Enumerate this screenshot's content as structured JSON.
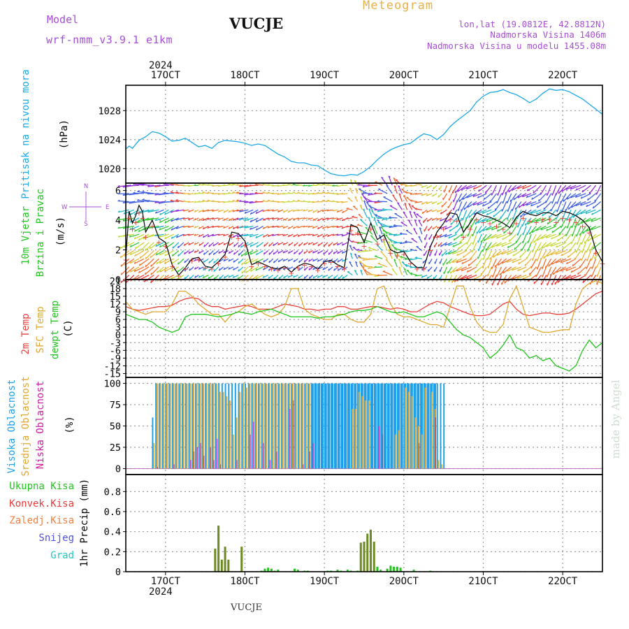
{
  "header": {
    "model_label": "Model",
    "model_name": "wrf-nmm_v3.9.1 e1km",
    "station": "VUCJE",
    "title": "Meteogram",
    "lonlat": "lon,lat (19.0812E, 42.8812N)",
    "elevation": "Nadmorska Visina 1406m",
    "model_elevation": "Nadmorska Visina u modelu 1455.08m",
    "year_top": "2024",
    "year_bottom": "2024",
    "footer_station": "VUCJE",
    "watermark": "made by Angel"
  },
  "colors": {
    "purple": "#a64dd8",
    "gold": "#e8b04a",
    "pressure": "#1fa8e8",
    "t2m": "#e8403a",
    "tsfc": "#e0a830",
    "dewpt": "#22c41e",
    "cloud_high": "#1fa0e8",
    "cloud_mid": "#e0a830",
    "cloud_low": "#d21ea0",
    "precip_total": "#22c41e",
    "precip_conv": "#e83a3a",
    "precip_freeze": "#f08040",
    "precip_snow": "#5050e0",
    "precip_hail": "#20c8c8",
    "precip_bar": "#6e8a22"
  },
  "x_axis": {
    "start": "2024-10-16T12",
    "end": "2024-10-22T12",
    "day_labels": [
      "17OCT",
      "18OCT",
      "19OCT",
      "20OCT",
      "21OCT",
      "22OCT"
    ],
    "day_hours": [
      12,
      36,
      60,
      84,
      108,
      132
    ]
  },
  "chart_data": [
    {
      "type": "line",
      "panel": "pressure",
      "ylabel_a": "Pritisak na nivou mora",
      "ylabel_b": "(hPa)",
      "ylim": [
        1018,
        1031.5
      ],
      "yticks": [
        1020,
        1024,
        1028
      ],
      "series": [
        {
          "name": "Pritisak na nivou mora",
          "x": [
            0,
            1,
            2,
            4,
            6,
            8,
            10,
            12,
            14,
            16,
            18,
            20,
            22,
            24,
            26,
            28,
            30,
            32,
            34,
            36,
            38,
            40,
            42,
            44,
            46,
            48,
            50,
            52,
            54,
            56,
            58,
            60,
            62,
            64,
            66,
            68,
            70,
            72,
            74,
            76,
            78,
            80,
            82,
            84,
            86,
            88,
            90,
            92,
            94,
            96,
            98,
            100,
            102,
            104,
            106,
            108,
            110,
            112,
            114,
            116,
            118,
            120,
            122,
            124,
            126,
            128,
            130,
            132,
            134,
            136,
            138,
            140,
            142,
            144
          ],
          "values": [
            1022.7,
            1023.1,
            1022.8,
            1023.9,
            1024.4,
            1025.1,
            1024.9,
            1024.4,
            1023.8,
            1023.9,
            1024.2,
            1023.6,
            1023.0,
            1023.2,
            1022.8,
            1023.6,
            1023.9,
            1023.8,
            1023.7,
            1023.5,
            1023.2,
            1023.4,
            1023.2,
            1022.6,
            1022.0,
            1021.6,
            1021.0,
            1020.8,
            1020.8,
            1020.5,
            1020.4,
            1019.8,
            1019.3,
            1019.1,
            1019.0,
            1019.2,
            1019.1,
            1019.6,
            1020.3,
            1021.2,
            1022.0,
            1022.6,
            1023.0,
            1023.3,
            1023.5,
            1024.2,
            1024.8,
            1024.6,
            1024.0,
            1024.7,
            1025.8,
            1026.6,
            1027.3,
            1028.0,
            1029.2,
            1030.0,
            1030.5,
            1030.6,
            1030.9,
            1030.5,
            1030.2,
            1029.7,
            1029.1,
            1029.6,
            1030.4,
            1031.0,
            1030.8,
            1030.9,
            1030.6,
            1030.1,
            1029.6,
            1028.9,
            1028.2,
            1027.5
          ]
        }
      ]
    },
    {
      "type": "line",
      "panel": "wind",
      "ylabel_a": "10m Vjetar",
      "ylabel_b": "Brzina i Pravac",
      "ylabel_unit": "(m/s)",
      "compass": {
        "w": "W",
        "e": "E",
        "n": "N",
        "s": "S"
      },
      "ylim": [
        0,
        6.5
      ],
      "yticks": [
        0,
        2,
        4,
        6
      ],
      "series": [
        {
          "name": "10m Vjetar",
          "x": [
            0,
            1,
            2,
            3,
            4,
            5,
            6,
            8,
            10,
            12,
            14,
            16,
            18,
            20,
            22,
            24,
            26,
            28,
            30,
            32,
            34,
            36,
            38,
            40,
            42,
            44,
            46,
            48,
            50,
            52,
            54,
            56,
            58,
            60,
            62,
            64,
            66,
            68,
            70,
            72,
            74,
            76,
            78,
            80,
            82,
            84,
            86,
            88,
            90,
            92,
            94,
            96,
            98,
            100,
            102,
            104,
            106,
            108,
            110,
            112,
            114,
            116,
            118,
            120,
            122,
            124,
            126,
            128,
            130,
            132,
            134,
            136,
            138,
            140,
            142,
            144
          ],
          "values": [
            1.5,
            4.6,
            3.8,
            4.3,
            5.0,
            4.6,
            3.2,
            4.0,
            2.8,
            2.5,
            1.0,
            0.3,
            0.8,
            1.4,
            1.5,
            0.9,
            0.8,
            1.2,
            1.7,
            3.2,
            3.1,
            2.6,
            1.0,
            1.2,
            1.0,
            0.8,
            0.7,
            0.9,
            0.5,
            0.9,
            1.1,
            1.0,
            0.7,
            1.2,
            1.3,
            1.0,
            0.8,
            3.7,
            3.5,
            2.5,
            3.8,
            2.7,
            3.0,
            2.0,
            1.8,
            1.9,
            1.2,
            0.8,
            0.8,
            2.2,
            3.2,
            3.8,
            4.5,
            4.4,
            3.2,
            3.8,
            4.5,
            4.3,
            4.2,
            4.0,
            3.8,
            3.5,
            4.2,
            4.6,
            4.4,
            4.3,
            4.5,
            4.5,
            4.3,
            4.6,
            4.5,
            4.3,
            4.0,
            3.5,
            2.0,
            1.2
          ]
        }
      ]
    },
    {
      "type": "line",
      "panel": "temperature",
      "ylabel_a": "2m Temp",
      "ylabel_b": "SFC Temp",
      "ylabel_c": "dewpt Temp",
      "ylabel_unit": "(C)",
      "ylim": [
        -16.5,
        21.5
      ],
      "yticks": [
        -15,
        -12,
        -9,
        -6,
        -3,
        0,
        3,
        6,
        9,
        12,
        15,
        18,
        21
      ],
      "x": [
        0,
        2,
        4,
        6,
        8,
        10,
        12,
        14,
        16,
        18,
        20,
        22,
        24,
        26,
        28,
        30,
        32,
        34,
        36,
        38,
        40,
        42,
        44,
        46,
        48,
        50,
        52,
        54,
        56,
        58,
        60,
        62,
        64,
        66,
        68,
        70,
        72,
        74,
        76,
        78,
        80,
        82,
        84,
        86,
        88,
        90,
        92,
        94,
        96,
        98,
        100,
        102,
        104,
        106,
        108,
        110,
        112,
        114,
        116,
        118,
        120,
        122,
        124,
        126,
        128,
        130,
        132,
        134,
        136,
        138,
        140,
        142,
        144
      ],
      "series": [
        {
          "name": "2m Temp",
          "values": [
            11,
            10,
            9.5,
            10,
            10.5,
            11,
            11,
            11.5,
            13,
            14,
            14.5,
            14,
            12,
            11,
            11,
            10,
            10.5,
            11,
            11.5,
            11,
            10,
            10,
            10,
            11,
            12,
            11.5,
            11,
            10,
            10,
            9.5,
            10,
            10,
            11,
            11,
            10,
            10,
            10.5,
            11,
            11,
            10.5,
            10,
            10.5,
            10,
            9,
            9,
            10.5,
            12,
            13,
            12.5,
            11,
            10,
            9,
            8,
            7.5,
            7.5,
            8,
            10,
            12,
            13,
            10,
            8,
            7.5,
            8,
            8.5,
            8.5,
            8,
            8,
            8.5,
            10,
            12,
            14,
            16,
            17
          ]
        },
        {
          "name": "SFC Temp",
          "values": [
            13,
            10,
            9,
            8,
            9,
            9,
            9,
            12,
            17,
            17,
            15,
            12,
            10,
            8,
            8,
            5,
            8,
            9,
            11,
            12,
            10,
            8,
            7,
            8,
            11,
            18,
            18,
            10,
            8,
            7,
            6,
            6,
            8,
            8,
            6,
            5,
            5,
            8,
            18,
            19,
            12,
            8,
            7,
            7,
            6,
            5,
            4,
            4,
            3,
            11,
            19,
            19,
            11,
            5,
            2,
            1,
            1,
            4,
            14,
            19,
            11,
            3,
            2,
            1,
            1,
            1.5,
            2,
            2,
            12,
            18,
            20,
            21,
            20
          ]
        },
        {
          "name": "dewpt Temp",
          "values": [
            8,
            7,
            6,
            6,
            5,
            3,
            2,
            1,
            2,
            7,
            8,
            8,
            8,
            7.5,
            7,
            7.5,
            8,
            9,
            8.5,
            8,
            9,
            9.5,
            10,
            9,
            8,
            7,
            7,
            7,
            7,
            6.5,
            7,
            7,
            7.5,
            8,
            9,
            9.5,
            9.5,
            10,
            11,
            10,
            9,
            8.5,
            9,
            8,
            7,
            7,
            8,
            9,
            8,
            5,
            2,
            0,
            -1,
            -3,
            -5,
            -9,
            -7,
            -4,
            0,
            -5,
            -6,
            -9,
            -8,
            -10,
            -9,
            -12,
            -13,
            -14,
            -12,
            -6,
            -2,
            -5,
            -3
          ]
        }
      ]
    },
    {
      "type": "bar",
      "panel": "clouds",
      "ylabel_a": "Visoka Oblacnost",
      "ylabel_b": "Srednja Oblacnost",
      "ylabel_c": "Niska Oblacnost",
      "ylabel_unit": "(%)",
      "ylim": [
        -7,
        107
      ],
      "yticks": [
        0,
        25,
        50,
        75,
        100
      ],
      "x_start_hour": 8,
      "x_step_hours": 1,
      "series": [
        {
          "name": "Visoka Oblacnost",
          "values": [
            60,
            100,
            100,
            100,
            100,
            100,
            100,
            100,
            100,
            100,
            100,
            100,
            100,
            100,
            100,
            100,
            100,
            100,
            100,
            100,
            100,
            100,
            100,
            100,
            100,
            100,
            100,
            100,
            100,
            100,
            100,
            100,
            100,
            100,
            100,
            100,
            100,
            100,
            100,
            100,
            100,
            100,
            100,
            100,
            100,
            100,
            100,
            100,
            100,
            100,
            100,
            100,
            100,
            100,
            100,
            100,
            100,
            100,
            100,
            100,
            100,
            100,
            100,
            100,
            100,
            100,
            100,
            100,
            100,
            100,
            100,
            100,
            100,
            100,
            100,
            100,
            100,
            100,
            100,
            100,
            100,
            100,
            100,
            100,
            100,
            100,
            100,
            100,
            100
          ]
        },
        {
          "name": "Srednja Oblacnost",
          "values": [
            30,
            100,
            100,
            100,
            100,
            100,
            100,
            100,
            100,
            100,
            100,
            100,
            100,
            100,
            100,
            100,
            100,
            100,
            100,
            100,
            90,
            90,
            85,
            80,
            40,
            60,
            90,
            100,
            95,
            100,
            100,
            100,
            100,
            100,
            100,
            100,
            100,
            100,
            100,
            100,
            100,
            100,
            100,
            100,
            100,
            100,
            100,
            100,
            100,
            100,
            100,
            100,
            100,
            100,
            100,
            100,
            100,
            100,
            100,
            100,
            70,
            70,
            90,
            85,
            80,
            80,
            100,
            100,
            100,
            100,
            100,
            100,
            100,
            40,
            45,
            100,
            95,
            90,
            85,
            60,
            50,
            40,
            95,
            100,
            90,
            70,
            10,
            5,
            0
          ]
        },
        {
          "name": "Niska Oblacnost",
          "values": [
            0,
            2,
            0,
            0,
            0,
            0,
            5,
            0,
            0,
            0,
            0,
            10,
            20,
            25,
            30,
            15,
            0,
            25,
            10,
            35,
            5,
            0,
            0,
            0,
            0,
            10,
            0,
            0,
            0,
            40,
            55,
            0,
            0,
            30,
            0,
            10,
            0,
            20,
            0,
            0,
            0,
            70,
            80,
            0,
            0,
            5,
            0,
            20,
            30,
            0,
            0,
            0,
            0,
            0,
            0,
            0,
            0,
            0,
            0,
            0,
            0,
            0,
            0,
            0,
            0,
            0,
            0,
            0,
            50,
            40,
            0,
            0,
            0,
            0,
            0,
            0,
            0,
            0,
            0,
            0,
            30,
            0,
            0,
            0,
            0,
            60,
            0,
            0,
            0
          ]
        }
      ]
    },
    {
      "type": "bar",
      "panel": "precip",
      "ylabel_a": "Ukupna Kisa",
      "ylabel_b": "Konvek.Kisa",
      "ylabel_c": "Zaledj.Kisa",
      "ylabel_d": "Snijeg",
      "ylabel_e": "Grad",
      "ylabel_unit": "1hr Precip (mm)",
      "ylim": [
        0,
        0.97
      ],
      "yticks": [
        0,
        0.2,
        0.4,
        0.6,
        0.8
      ],
      "series": [
        {
          "name": "Ukupna Kisa",
          "x": [
            27,
            28,
            29,
            30,
            31,
            35,
            41,
            42,
            43,
            44,
            45,
            46,
            51,
            52,
            54,
            55,
            61,
            62,
            64,
            65,
            67,
            68,
            70,
            71,
            72,
            73,
            74,
            75,
            76,
            77,
            79,
            80,
            81,
            82,
            83,
            87,
            92
          ],
          "values": [
            0.23,
            0.46,
            0.12,
            0.25,
            0.12,
            0.25,
            0.01,
            0.03,
            0.04,
            0.03,
            0.01,
            0.02,
            0.03,
            0.02,
            0.01,
            0.01,
            0.01,
            0.01,
            0.02,
            0.01,
            0.02,
            0.01,
            0.01,
            0.29,
            0.3,
            0.38,
            0.42,
            0.3,
            0.05,
            0.02,
            0.03,
            0.06,
            0.05,
            0.05,
            0.04,
            0.02,
            0.01
          ]
        }
      ]
    }
  ]
}
